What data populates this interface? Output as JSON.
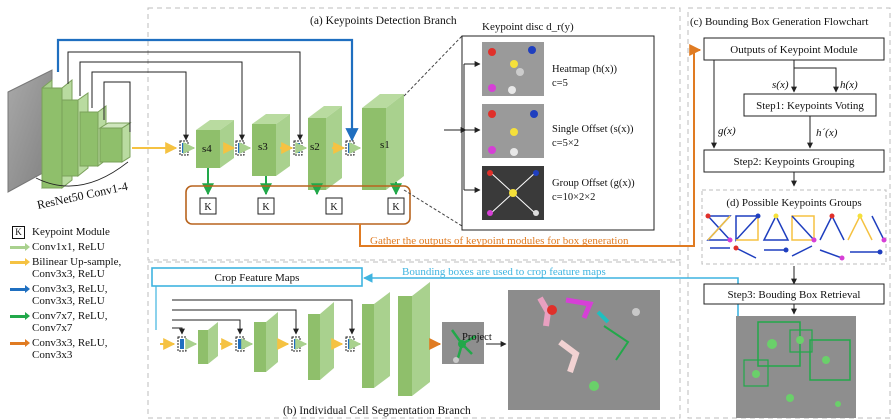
{
  "titles": {
    "detection_branch": "(a) Keypoints Detection Branch",
    "segmentation_branch": "(b) Individual Cell Segmentation Branch",
    "flowchart": "(c) Bounding Box Generation Flowchart",
    "possible_groups": "(d) Possible Keypoints Groups"
  },
  "backbone": {
    "label": "ResNet50 Conv1-4"
  },
  "stages": [
    "s4",
    "s3",
    "s2",
    "s1"
  ],
  "keypoint_module_symbol": "K",
  "keypoint_disc": {
    "title": "Keypoint disc d_r(y)",
    "outputs": [
      {
        "name": "Heatmap (h(x))",
        "channels": "c=5"
      },
      {
        "name": "Single Offset (s(x))",
        "channels": "c=5×2"
      },
      {
        "name": "Group Offset (g(x))",
        "channels": "c=10×2×2"
      }
    ]
  },
  "annotations": {
    "gather": "Gather the outputs of keypoint modules for box generation",
    "crop_box": "Crop Feature Maps",
    "bbox_crop": "Bounding boxes are used to crop feature maps",
    "project": "Project"
  },
  "flowchart": {
    "outputs_box": "Outputs of Keypoint Module",
    "step1": "Step1: Keypoints Voting",
    "step2": "Step2: Keypoints Grouping",
    "step3": "Step3: Bouding Box Retrieval",
    "sx": "s(x)",
    "hx": "h(x)",
    "gx": "g(x)",
    "hpx": "h´(x)"
  },
  "legend": [
    {
      "label": "Keypoint Module",
      "symbol": "K"
    },
    {
      "label": "Conv1x1, ReLU",
      "color": "#a9d18e"
    },
    {
      "label": "Bilinear Up-sample, Conv3x3, ReLU",
      "color": "#f5c242"
    },
    {
      "label": "Conv3x3, ReLU, Conv3x3, ReLU",
      "color": "#1f6fc0"
    },
    {
      "label": "Conv7x7, ReLU, Conv7x7",
      "color": "#22a84a"
    },
    {
      "label": "Conv3x3, ReLU, Conv3x3",
      "color": "#e07b22"
    }
  ],
  "colors": {
    "feature_green": "#8fbf6b",
    "cyan_box": "#3fb4e0",
    "orange": "#e07b22",
    "blue": "#1f6fc0",
    "green_arrow": "#22a84a",
    "yellow": "#f5c242",
    "light_green": "#a9d18e"
  }
}
